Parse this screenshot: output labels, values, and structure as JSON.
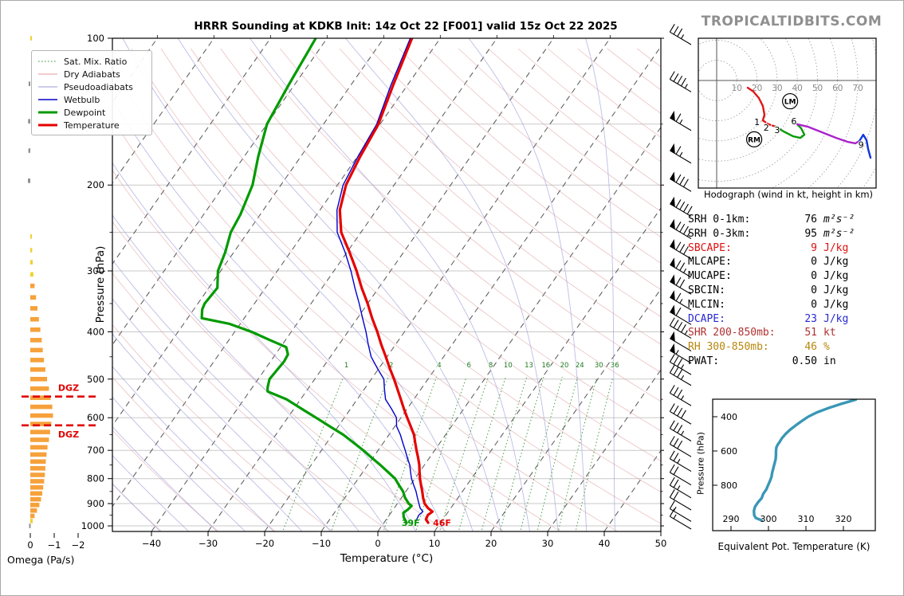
{
  "branding": {
    "logo": "TROPICALTIDBITS.COM",
    "color": "#8f8f8f"
  },
  "chart_data": {
    "type": "skewt-sounding",
    "title": "HRRR Sounding at KDKB Init: 14z Oct 22 [F001] valid 15z Oct 22 2025",
    "skewt": {
      "xlabel": "Temperature (°C)",
      "ylabel": "Pressure (hPa)",
      "xlim": [
        -40,
        50
      ],
      "plim": [
        100,
        1035
      ],
      "x_ticks": [
        -40,
        -30,
        -20,
        -10,
        0,
        10,
        20,
        30,
        40,
        50
      ],
      "p_ticks": [
        100,
        200,
        300,
        400,
        500,
        600,
        700,
        800,
        900,
        1000
      ],
      "p_gridlines": [
        100,
        150,
        200,
        250,
        300,
        400,
        500,
        600,
        700,
        800,
        900,
        1000
      ],
      "isotherm_step": 10,
      "mixing_ratio_lines": [
        1,
        2,
        4,
        6,
        8,
        10,
        13,
        16,
        20,
        24,
        30,
        36
      ],
      "surface_temp_label": "46F",
      "surface_dewp_label": "39F",
      "temperature_profile": [
        [
          985,
          7.8
        ],
        [
          970,
          7.0
        ],
        [
          950,
          6.8
        ],
        [
          935,
          7.2
        ],
        [
          920,
          6.0
        ],
        [
          900,
          4.8
        ],
        [
          875,
          3.8
        ],
        [
          850,
          2.9
        ],
        [
          825,
          1.9
        ],
        [
          800,
          0.9
        ],
        [
          775,
          0.0
        ],
        [
          750,
          -0.9
        ],
        [
          725,
          -2.0
        ],
        [
          700,
          -3.2
        ],
        [
          675,
          -4.4
        ],
        [
          650,
          -5.6
        ],
        [
          625,
          -7.2
        ],
        [
          600,
          -8.9
        ],
        [
          575,
          -10.6
        ],
        [
          550,
          -12.3
        ],
        [
          525,
          -14.1
        ],
        [
          500,
          -16.0
        ],
        [
          475,
          -18.1
        ],
        [
          450,
          -20.2
        ],
        [
          425,
          -22.5
        ],
        [
          400,
          -24.8
        ],
        [
          375,
          -27.4
        ],
        [
          350,
          -30.0
        ],
        [
          325,
          -33.0
        ],
        [
          300,
          -36.0
        ],
        [
          275,
          -39.5
        ],
        [
          250,
          -43.5
        ],
        [
          225,
          -46.5
        ],
        [
          200,
          -48.5
        ],
        [
          175,
          -49.5
        ],
        [
          150,
          -50.3
        ],
        [
          125,
          -52.5
        ],
        [
          100,
          -55.0
        ]
      ],
      "dewpoint_profile": [
        [
          985,
          4.0
        ],
        [
          960,
          2.8
        ],
        [
          940,
          2.2
        ],
        [
          925,
          2.6
        ],
        [
          910,
          2.8
        ],
        [
          900,
          2.0
        ],
        [
          875,
          0.6
        ],
        [
          850,
          -0.5
        ],
        [
          825,
          -2.0
        ],
        [
          800,
          -3.5
        ],
        [
          775,
          -5.6
        ],
        [
          750,
          -7.8
        ],
        [
          725,
          -10.2
        ],
        [
          700,
          -12.6
        ],
        [
          675,
          -15.3
        ],
        [
          650,
          -18.1
        ],
        [
          625,
          -21.5
        ],
        [
          600,
          -25.0
        ],
        [
          575,
          -28.7
        ],
        [
          550,
          -32.5
        ],
        [
          530,
          -36.8
        ],
        [
          520,
          -37.3
        ],
        [
          500,
          -38.0
        ],
        [
          480,
          -37.8
        ],
        [
          460,
          -37.6
        ],
        [
          445,
          -37.8
        ],
        [
          430,
          -39.0
        ],
        [
          415,
          -43.0
        ],
        [
          400,
          -47.0
        ],
        [
          385,
          -52.0
        ],
        [
          375,
          -57.5
        ],
        [
          360,
          -58.5
        ],
        [
          350,
          -58.8
        ],
        [
          325,
          -58.5
        ],
        [
          300,
          -60.5
        ],
        [
          275,
          -61.5
        ],
        [
          250,
          -63.0
        ],
        [
          230,
          -63.5
        ],
        [
          200,
          -65.0
        ],
        [
          175,
          -67.5
        ],
        [
          150,
          -70.0
        ],
        [
          125,
          -71.0
        ],
        [
          100,
          -72.0
        ]
      ],
      "wetbulb_profile": [
        [
          985,
          5.5
        ],
        [
          950,
          5.2
        ],
        [
          935,
          5.5
        ],
        [
          920,
          4.6
        ],
        [
          900,
          3.8
        ],
        [
          875,
          2.8
        ],
        [
          850,
          1.8
        ],
        [
          825,
          0.6
        ],
        [
          800,
          -0.6
        ],
        [
          775,
          -1.6
        ],
        [
          750,
          -2.6
        ],
        [
          725,
          -3.9
        ],
        [
          700,
          -5.2
        ],
        [
          675,
          -6.6
        ],
        [
          650,
          -8.0
        ],
        [
          625,
          -9.7
        ],
        [
          600,
          -10.8
        ],
        [
          575,
          -12.8
        ],
        [
          550,
          -15.0
        ],
        [
          525,
          -16.4
        ],
        [
          500,
          -17.8
        ],
        [
          475,
          -20.3
        ],
        [
          450,
          -22.8
        ],
        [
          425,
          -24.8
        ],
        [
          400,
          -26.8
        ],
        [
          375,
          -29.1
        ],
        [
          350,
          -31.5
        ],
        [
          325,
          -34.2
        ],
        [
          300,
          -37.0
        ],
        [
          275,
          -40.3
        ],
        [
          250,
          -44.2
        ],
        [
          225,
          -47.0
        ],
        [
          200,
          -49.0
        ],
        [
          175,
          -49.9
        ],
        [
          150,
          -50.6
        ],
        [
          125,
          -52.9
        ],
        [
          100,
          -55.3
        ]
      ],
      "colors": {
        "temperature": "#e60000",
        "dewpoint": "#009a00",
        "wetbulb": "#0000cc",
        "dry_adiabat": "#e09999",
        "pseudoadiabat": "#9a9ad8",
        "mixing_ratio": "#2a8b2a",
        "isotherm": "#555555",
        "grid": "#c9c9c9"
      }
    },
    "omega": {
      "label": "Omega (Pa/s)",
      "x_ticks": [
        0,
        -1,
        -2
      ],
      "dgz_label": "DGZ",
      "dgz_pressures": [
        543,
        622
      ],
      "dgz_color": "#e00000",
      "bar_colors": {
        "positive": "#909090",
        "weak": "#f2d12e",
        "strong": "#f6a13b"
      },
      "bars": [
        [
          100,
          -0.06
        ],
        [
          124,
          0.07
        ],
        [
          148,
          0.09
        ],
        [
          170,
          0.08
        ],
        [
          196,
          0.1
        ],
        [
          255,
          -0.05
        ],
        [
          272,
          -0.08
        ],
        [
          288,
          -0.1
        ],
        [
          305,
          -0.13
        ],
        [
          322,
          -0.18
        ],
        [
          340,
          -0.24
        ],
        [
          358,
          -0.3
        ],
        [
          377,
          -0.36
        ],
        [
          396,
          -0.42
        ],
        [
          416,
          -0.48
        ],
        [
          436,
          -0.52
        ],
        [
          457,
          -0.57
        ],
        [
          478,
          -0.63
        ],
        [
          500,
          -0.7
        ],
        [
          523,
          -0.78
        ],
        [
          546,
          -0.85
        ],
        [
          570,
          -0.92
        ],
        [
          594,
          -0.95
        ],
        [
          618,
          -0.88
        ],
        [
          642,
          -0.83
        ],
        [
          666,
          -0.78
        ],
        [
          690,
          -0.72
        ],
        [
          714,
          -0.68
        ],
        [
          738,
          -0.65
        ],
        [
          762,
          -0.63
        ],
        [
          786,
          -0.61
        ],
        [
          810,
          -0.58
        ],
        [
          834,
          -0.54
        ],
        [
          858,
          -0.5
        ],
        [
          882,
          -0.45
        ],
        [
          906,
          -0.38
        ],
        [
          930,
          -0.28
        ],
        [
          954,
          -0.18
        ],
        [
          977,
          -0.1
        ],
        [
          1000,
          0.05
        ]
      ]
    },
    "wind_barbs": [
      [
        100,
        35
      ],
      [
        125,
        45
      ],
      [
        150,
        65
      ],
      [
        175,
        65
      ],
      [
        200,
        80
      ],
      [
        225,
        90
      ],
      [
        250,
        85
      ],
      [
        275,
        80
      ],
      [
        300,
        75
      ],
      [
        325,
        70
      ],
      [
        350,
        65
      ],
      [
        375,
        60
      ],
      [
        400,
        45
      ],
      [
        425,
        50
      ],
      [
        450,
        55
      ],
      [
        475,
        35
      ],
      [
        500,
        35
      ],
      [
        550,
        35
      ],
      [
        600,
        40
      ],
      [
        650,
        35
      ],
      [
        700,
        30
      ],
      [
        750,
        25
      ],
      [
        800,
        20
      ],
      [
        850,
        25
      ],
      [
        900,
        20
      ],
      [
        950,
        15
      ],
      [
        985,
        15
      ]
    ],
    "hodograph": {
      "caption": "Hodograph (wind in kt, height in km)",
      "ring_labels": [
        10,
        20,
        30,
        40,
        50,
        60,
        70
      ],
      "ring_step_kt": 10,
      "segments": [
        {
          "color": "#e01717",
          "dash": "",
          "pts": [
            [
              15.4,
              -3.6
            ],
            [
              18.2,
              -5.5
            ],
            [
              20.9,
              -8.7
            ],
            [
              22.9,
              -12.6
            ],
            [
              23.7,
              -17.0
            ],
            [
              22.9,
              -19.8
            ]
          ]
        },
        {
          "color": "#e01717",
          "dash": "4 3",
          "pts": [
            [
              22.9,
              -19.8
            ],
            [
              25.7,
              -21.7
            ],
            [
              29.2,
              -22.9
            ]
          ]
        },
        {
          "color": "#0a9a0a",
          "dash": "",
          "pts": [
            [
              29.2,
              -22.9
            ],
            [
              33.2,
              -25.3
            ],
            [
              37.9,
              -27.7
            ],
            [
              41.5,
              -28.5
            ],
            [
              43.5,
              -26.9
            ],
            [
              41.9,
              -23.7
            ],
            [
              39.9,
              -21.7
            ]
          ]
        },
        {
          "color": "#aa22cc",
          "dash": "",
          "pts": [
            [
              39.9,
              -21.7
            ],
            [
              45.1,
              -22.9
            ],
            [
              52.2,
              -25.7
            ],
            [
              59.3,
              -28.5
            ],
            [
              64.8,
              -30.4
            ],
            [
              68.8,
              -31.2
            ],
            [
              70.8,
              -30.0
            ]
          ]
        },
        {
          "color": "#1133dd",
          "dash": "",
          "pts": [
            [
              70.8,
              -30.0
            ],
            [
              72.7,
              -26.9
            ],
            [
              74.3,
              -29.6
            ],
            [
              75.1,
              -34.0
            ],
            [
              76.3,
              -38.3
            ]
          ]
        }
      ],
      "height_labels": [
        {
          "text": "1",
          "u": 20.0,
          "v": -20.6
        },
        {
          "text": "2",
          "u": 24.6,
          "v": -23.3
        },
        {
          "text": "3",
          "u": 30.0,
          "v": -24.6
        },
        {
          "text": "6",
          "u": 38.3,
          "v": -20.2
        },
        {
          "text": "9",
          "u": 71.6,
          "v": -31.8
        }
      ],
      "markers": [
        {
          "text": "LM",
          "u": 36.4,
          "v": -10.3
        },
        {
          "text": "RM",
          "u": 18.6,
          "v": -29.2
        }
      ]
    },
    "stats": [
      {
        "label": "SRH 0-1km:",
        "value": "76",
        "unit": "m²s⁻²",
        "color": "#000000",
        "italic_unit": true
      },
      {
        "label": "SRH 0-3km:",
        "value": "95",
        "unit": "m²s⁻²",
        "color": "#000000",
        "italic_unit": true
      },
      {
        "label": "SBCAPE:",
        "value": "9",
        "unit": "J/kg",
        "color": "#e01010"
      },
      {
        "label": "MLCAPE:",
        "value": "0",
        "unit": "J/kg",
        "color": "#000000"
      },
      {
        "label": "MUCAPE:",
        "value": "0",
        "unit": "J/kg",
        "color": "#000000"
      },
      {
        "label": "SBCIN:",
        "value": "0",
        "unit": "J/kg",
        "color": "#000000"
      },
      {
        "label": "MLCIN:",
        "value": "0",
        "unit": "J/kg",
        "color": "#000000"
      },
      {
        "label": "DCAPE:",
        "value": "23",
        "unit": "J/kg",
        "color": "#2828d0"
      },
      {
        "label": "SHR 200-850mb:",
        "value": "51",
        "unit": "kt",
        "color": "#b03030"
      },
      {
        "label": "RH 300-850mb:",
        "value": "46",
        "unit": "%",
        "color": "#b8860b"
      },
      {
        "label": "PWAT:",
        "value": "0.50",
        "unit": "in",
        "color": "#000000"
      }
    ],
    "theta_e": {
      "xlabel": "Equivalent Pot. Temperature (K)",
      "ylabel": "Pressure (hPa)",
      "x_ticks": [
        290,
        300,
        310,
        320
      ],
      "p_ticks": [
        400,
        600,
        800
      ],
      "color": "#3a97b5",
      "profile": [
        [
          1005,
          298.2
        ],
        [
          1000,
          297.6
        ],
        [
          990,
          296.6
        ],
        [
          975,
          296.2
        ],
        [
          950,
          296.1
        ],
        [
          925,
          296.4
        ],
        [
          900,
          297.2
        ],
        [
          875,
          298.2
        ],
        [
          850,
          298.6
        ],
        [
          825,
          299.4
        ],
        [
          800,
          299.9
        ],
        [
          775,
          300.4
        ],
        [
          750,
          300.8
        ],
        [
          725,
          301.0
        ],
        [
          700,
          301.3
        ],
        [
          675,
          301.6
        ],
        [
          650,
          301.9
        ],
        [
          625,
          302.0
        ],
        [
          600,
          302.0
        ],
        [
          580,
          302.1
        ],
        [
          565,
          302.4
        ],
        [
          550,
          302.9
        ],
        [
          525,
          303.6
        ],
        [
          500,
          304.6
        ],
        [
          475,
          305.8
        ],
        [
          450,
          307.3
        ],
        [
          425,
          308.9
        ],
        [
          400,
          310.6
        ],
        [
          375,
          312.9
        ],
        [
          350,
          315.9
        ],
        [
          325,
          319.4
        ],
        [
          310,
          321.8
        ],
        [
          300,
          323.3
        ]
      ]
    }
  },
  "legend": {
    "items": [
      {
        "key": "satmix",
        "label": "Sat. Mix. Ratio"
      },
      {
        "key": "dry",
        "label": "Dry Adiabats"
      },
      {
        "key": "pseudo",
        "label": "Pseudoadiabats"
      },
      {
        "key": "wetbulb",
        "label": "Wetbulb"
      },
      {
        "key": "dew",
        "label": "Dewpoint"
      },
      {
        "key": "temp",
        "label": "Temperature"
      }
    ]
  }
}
